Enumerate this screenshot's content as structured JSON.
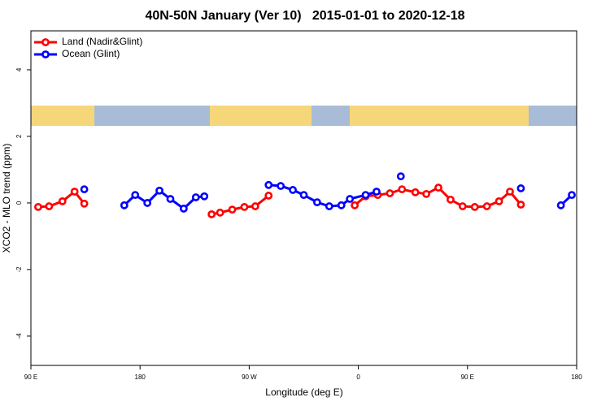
{
  "chart_data": {
    "type": "line",
    "title": "40N-50N January (Ver 10)   2015-01-01 to 2020-12-18",
    "x_label": "Longitude (deg E)",
    "y_label": "XCO2 - MLO trend (ppm)",
    "xlim": [
      90,
      540
    ],
    "xticks": [
      {
        "value": 90,
        "label": "90 E"
      },
      180,
      {
        "value": 270,
        "label": "90 W"
      },
      {
        "value": 360,
        "label": "0"
      },
      {
        "value": 450,
        "label": "90 E"
      },
      {
        "value": 540,
        "label": "180"
      }
    ],
    "ylim": [
      -4.88,
      5.17
    ],
    "yticks": [
      -4,
      -2,
      0,
      2,
      4
    ],
    "grid": false,
    "legend": "top-left",
    "series": [
      {
        "name": "Land (Nadir&Glint)",
        "color": "#ff0000",
        "x": [
          96,
          105,
          116,
          126,
          134,
          186,
          239,
          246,
          256,
          266,
          275,
          286,
          320,
          357,
          366,
          376,
          386,
          396,
          407,
          416,
          426,
          436,
          446,
          456,
          466,
          476,
          485,
          494
        ],
        "values": [
          -0.12,
          -0.1,
          0.05,
          0.34,
          -0.02,
          null,
          -0.34,
          -0.29,
          -0.2,
          -0.12,
          -0.1,
          0.22,
          null,
          -0.07,
          0.2,
          0.24,
          0.29,
          0.41,
          0.32,
          0.27,
          0.46,
          0.1,
          -0.1,
          -0.12,
          -0.1,
          0.05,
          0.34,
          -0.05
        ]
      },
      {
        "name": "Ocean (Glint)",
        "color": "#0000ff",
        "x": [
          134,
          150,
          167,
          176,
          186,
          196,
          205,
          216,
          226,
          233,
          260,
          286,
          296,
          306,
          315,
          326,
          336,
          346,
          353,
          366,
          375,
          385,
          395,
          445,
          494,
          510,
          527,
          536
        ],
        "values": [
          0.41,
          null,
          -0.07,
          0.24,
          0,
          0.37,
          0.12,
          -0.17,
          0.17,
          0.2,
          null,
          0.54,
          0.51,
          0.39,
          0.24,
          0.02,
          -0.1,
          -0.07,
          0.12,
          0.24,
          0.34,
          null,
          0.8,
          null,
          0.44,
          null,
          -0.07,
          0.24
        ]
      }
    ]
  }
}
